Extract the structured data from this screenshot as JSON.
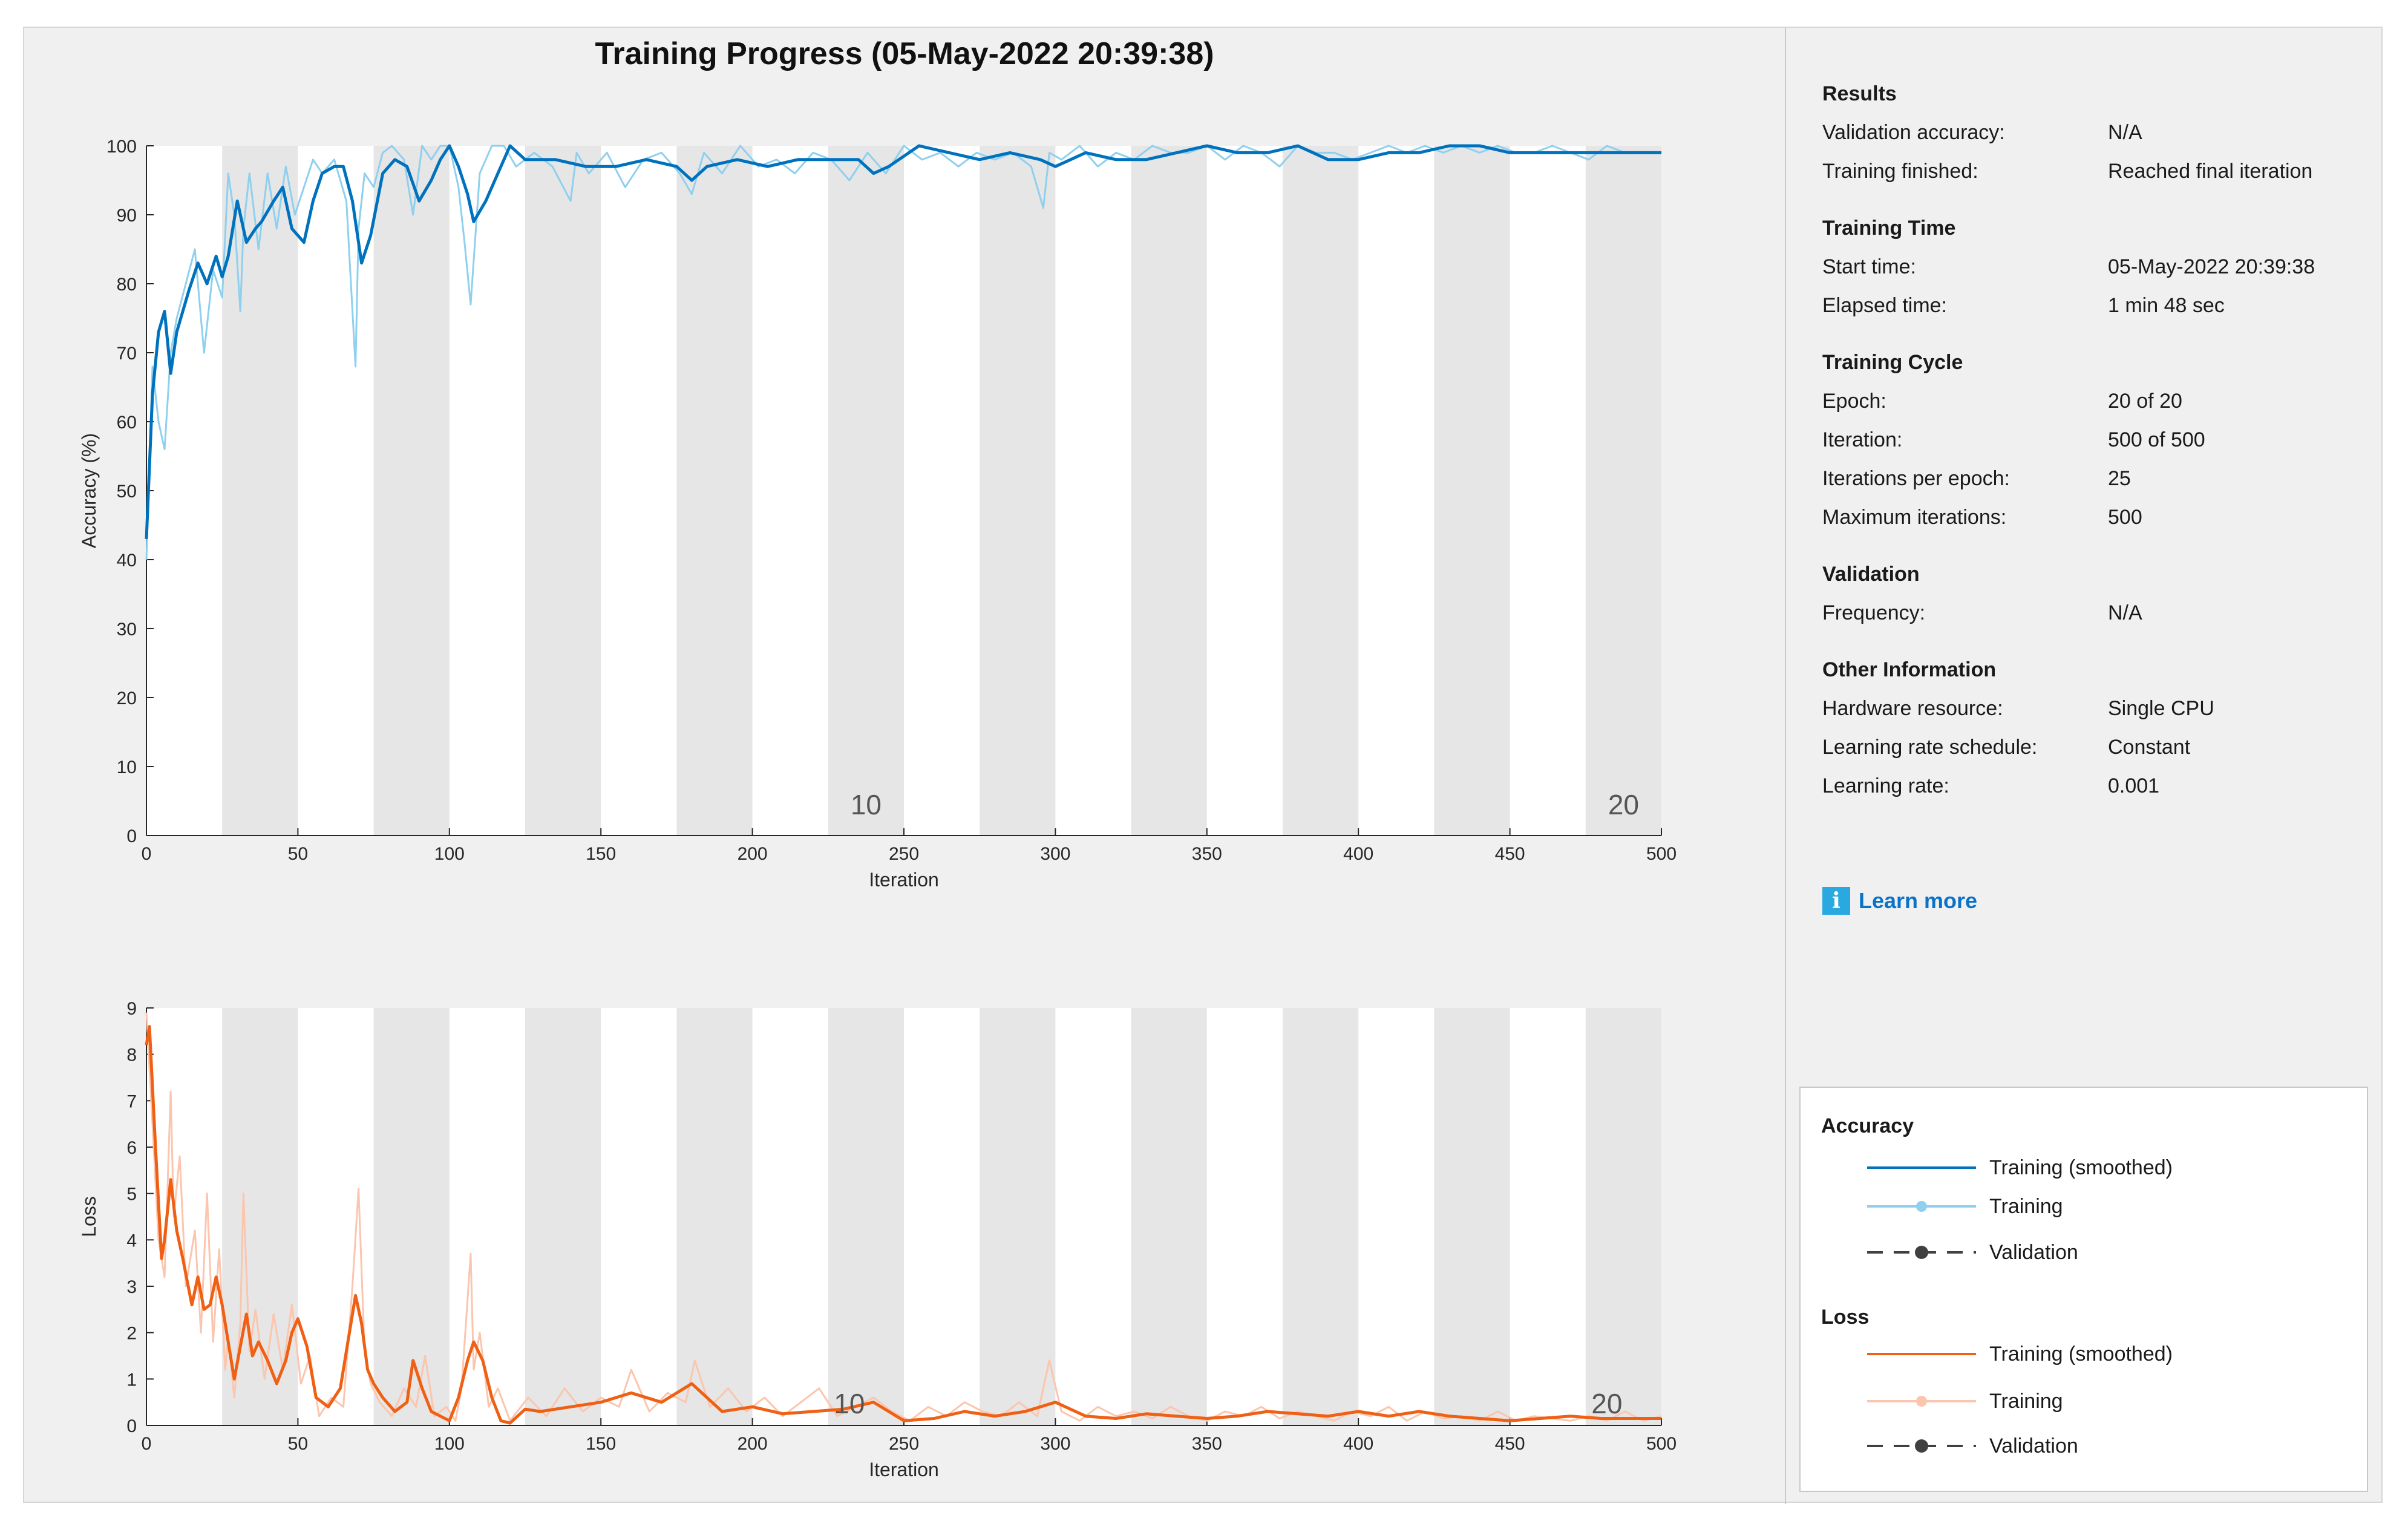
{
  "title": "Training Progress (05-May-2022 20:39:38)",
  "colors": {
    "acc_smoothed": "#0072bd",
    "acc_raw": "#8fd0ee",
    "loss_smoothed": "#f06014",
    "loss_raw": "#fbc5ae",
    "validation": "#404040",
    "band": "#e6e6e6"
  },
  "info": {
    "results": {
      "title": "Results",
      "rows": [
        {
          "label": "Validation accuracy:",
          "value": "N/A"
        },
        {
          "label": "Training finished:",
          "value": "Reached final iteration"
        }
      ]
    },
    "time": {
      "title": "Training Time",
      "rows": [
        {
          "label": "Start time:",
          "value": "05-May-2022 20:39:38"
        },
        {
          "label": "Elapsed time:",
          "value": "1 min 48 sec"
        }
      ]
    },
    "cycle": {
      "title": "Training Cycle",
      "rows": [
        {
          "label": "Epoch:",
          "value": "20 of 20"
        },
        {
          "label": "Iteration:",
          "value": "500 of 500"
        },
        {
          "label": "Iterations per epoch:",
          "value": "25"
        },
        {
          "label": "Maximum iterations:",
          "value": "500"
        }
      ]
    },
    "validation": {
      "title": "Validation",
      "rows": [
        {
          "label": "Frequency:",
          "value": "N/A"
        }
      ]
    },
    "other": {
      "title": "Other Information",
      "rows": [
        {
          "label": "Hardware resource:",
          "value": "Single CPU"
        },
        {
          "label": "Learning rate schedule:",
          "value": "Constant"
        },
        {
          "label": "Learning rate:",
          "value": "0.001"
        }
      ]
    },
    "learn_more": {
      "icon": "info-icon",
      "icon_glyph": "i",
      "label": "Learn more"
    }
  },
  "legend": {
    "accuracy": {
      "title": "Accuracy",
      "items": [
        "Training (smoothed)",
        "Training",
        "Validation"
      ]
    },
    "loss": {
      "title": "Loss",
      "items": [
        "Training (smoothed)",
        "Training",
        "Validation"
      ]
    }
  },
  "chart_data": [
    {
      "type": "line",
      "title": "Training Progress (05-May-2022 20:39:38)",
      "xlabel": "Iteration",
      "ylabel": "Accuracy (%)",
      "xlim": [
        0,
        500
      ],
      "ylim": [
        0,
        100
      ],
      "xticks": [
        0,
        50,
        100,
        150,
        200,
        250,
        300,
        350,
        400,
        450,
        500
      ],
      "yticks": [
        0,
        10,
        20,
        30,
        40,
        50,
        60,
        70,
        80,
        90,
        100
      ],
      "iterations_per_epoch": 25,
      "epoch_labels": [
        {
          "epoch": "10",
          "x": 237.5
        },
        {
          "epoch": "20",
          "x": 487.5
        }
      ],
      "series": [
        {
          "name": "Training (smoothed)",
          "x": [
            0,
            2,
            4,
            6,
            8,
            10,
            14,
            17,
            20,
            23,
            25,
            27,
            30,
            33,
            36,
            38,
            42,
            45,
            48,
            52,
            55,
            58,
            62,
            65,
            68,
            71,
            74,
            78,
            82,
            86,
            90,
            94,
            97,
            100,
            103,
            106,
            108,
            112,
            116,
            120,
            125,
            135,
            145,
            155,
            165,
            175,
            180,
            185,
            195,
            205,
            215,
            225,
            235,
            240,
            245,
            255,
            265,
            275,
            285,
            295,
            300,
            310,
            320,
            330,
            340,
            350,
            360,
            370,
            380,
            390,
            400,
            410,
            420,
            430,
            440,
            450,
            460,
            470,
            480,
            490,
            500
          ],
          "values": [
            43,
            64,
            73,
            76,
            67,
            73,
            79,
            83,
            80,
            84,
            81,
            84,
            92,
            86,
            88,
            89,
            92,
            94,
            88,
            86,
            92,
            96,
            97,
            97,
            92,
            83,
            87,
            96,
            98,
            97,
            92,
            95,
            98,
            100,
            97,
            93,
            89,
            92,
            96,
            100,
            98,
            98,
            97,
            97,
            98,
            97,
            95,
            97,
            98,
            97,
            98,
            98,
            98,
            96,
            97,
            100,
            99,
            98,
            99,
            98,
            97,
            99,
            98,
            98,
            99,
            100,
            99,
            99,
            100,
            98,
            98,
            99,
            99,
            100,
            100,
            99,
            99,
            99,
            99,
            99,
            99
          ]
        },
        {
          "name": "Training",
          "x": [
            0,
            2,
            4,
            6,
            8,
            10,
            13,
            16,
            19,
            22,
            25,
            27,
            29,
            31,
            32,
            34,
            37,
            40,
            43,
            46,
            49,
            52,
            55,
            58,
            62,
            66,
            69,
            70,
            72,
            75,
            78,
            81,
            85,
            88,
            91,
            94,
            97,
            100,
            103,
            105,
            107,
            110,
            114,
            118,
            122,
            128,
            134,
            140,
            142,
            146,
            152,
            158,
            164,
            170,
            176,
            180,
            184,
            190,
            196,
            202,
            208,
            214,
            220,
            226,
            232,
            238,
            244,
            250,
            256,
            262,
            268,
            274,
            280,
            286,
            292,
            296,
            298,
            302,
            308,
            314,
            320,
            326,
            332,
            338,
            344,
            350,
            356,
            362,
            368,
            374,
            380,
            386,
            392,
            398,
            404,
            410,
            416,
            422,
            428,
            434,
            440,
            446,
            452,
            458,
            464,
            470,
            476,
            482,
            488,
            494,
            500
          ],
          "values": [
            40,
            68,
            60,
            56,
            70,
            75,
            80,
            85,
            70,
            82,
            78,
            96,
            90,
            76,
            88,
            96,
            85,
            96,
            88,
            97,
            90,
            94,
            98,
            96,
            98,
            92,
            68,
            88,
            96,
            94,
            99,
            100,
            98,
            90,
            100,
            98,
            100,
            100,
            94,
            86,
            77,
            96,
            100,
            100,
            97,
            99,
            97,
            92,
            99,
            96,
            99,
            94,
            98,
            99,
            96,
            93,
            99,
            96,
            100,
            97,
            98,
            96,
            99,
            98,
            95,
            99,
            96,
            100,
            98,
            99,
            97,
            99,
            98,
            99,
            97,
            91,
            99,
            98,
            100,
            97,
            99,
            98,
            100,
            99,
            99,
            100,
            98,
            100,
            99,
            97,
            100,
            99,
            99,
            98,
            99,
            100,
            99,
            100,
            99,
            100,
            99,
            100,
            99,
            99,
            100,
            99,
            98,
            100,
            99,
            99,
            99
          ]
        }
      ]
    },
    {
      "type": "line",
      "xlabel": "Iteration",
      "ylabel": "Loss",
      "xlim": [
        0,
        500
      ],
      "ylim": [
        0,
        9
      ],
      "xticks": [
        0,
        50,
        100,
        150,
        200,
        250,
        300,
        350,
        400,
        450,
        500
      ],
      "yticks": [
        0,
        1,
        2,
        3,
        4,
        5,
        6,
        7,
        8,
        9
      ],
      "iterations_per_epoch": 25,
      "epoch_labels": [
        {
          "epoch": "10",
          "x": 232
        },
        {
          "epoch": "20",
          "x": 482
        }
      ],
      "series": [
        {
          "name": "Training (smoothed)",
          "x": [
            0,
            1,
            3,
            5,
            6,
            8,
            10,
            12,
            15,
            17,
            19,
            21,
            23,
            25,
            27,
            29,
            31,
            33,
            35,
            37,
            40,
            43,
            46,
            48,
            50,
            53,
            56,
            60,
            64,
            67,
            69,
            71,
            73,
            75,
            78,
            82,
            86,
            88,
            91,
            94,
            97,
            100,
            103,
            106,
            108,
            111,
            114,
            117,
            120,
            125,
            130,
            140,
            150,
            160,
            170,
            180,
            185,
            190,
            200,
            210,
            220,
            230,
            240,
            245,
            250,
            260,
            270,
            280,
            290,
            300,
            310,
            320,
            330,
            340,
            350,
            360,
            370,
            380,
            390,
            400,
            410,
            420,
            430,
            440,
            450,
            460,
            470,
            480,
            490,
            500
          ],
          "values": [
            8.2,
            8.6,
            6.0,
            3.6,
            4.0,
            5.3,
            4.2,
            3.6,
            2.6,
            3.2,
            2.5,
            2.6,
            3.2,
            2.6,
            1.8,
            1.0,
            1.7,
            2.4,
            1.5,
            1.8,
            1.4,
            0.9,
            1.4,
            2.0,
            2.3,
            1.7,
            0.6,
            0.4,
            0.8,
            2.0,
            2.8,
            2.2,
            1.2,
            0.9,
            0.6,
            0.3,
            0.5,
            1.4,
            0.8,
            0.3,
            0.2,
            0.1,
            0.6,
            1.4,
            1.8,
            1.4,
            0.6,
            0.1,
            0.05,
            0.35,
            0.3,
            0.4,
            0.5,
            0.7,
            0.5,
            0.9,
            0.6,
            0.3,
            0.4,
            0.25,
            0.3,
            0.35,
            0.5,
            0.3,
            0.1,
            0.15,
            0.3,
            0.2,
            0.3,
            0.5,
            0.2,
            0.15,
            0.25,
            0.2,
            0.15,
            0.2,
            0.3,
            0.25,
            0.2,
            0.3,
            0.2,
            0.3,
            0.2,
            0.15,
            0.1,
            0.15,
            0.2,
            0.15,
            0.15,
            0.15
          ]
        },
        {
          "name": "Training",
          "x": [
            0,
            2,
            4,
            6,
            8,
            9,
            11,
            13,
            16,
            18,
            20,
            22,
            24,
            26,
            27,
            29,
            31,
            32,
            34,
            36,
            39,
            42,
            45,
            48,
            51,
            54,
            57,
            61,
            65,
            68,
            70,
            72,
            74,
            77,
            81,
            85,
            89,
            92,
            95,
            99,
            102,
            104,
            107,
            108,
            110,
            113,
            116,
            120,
            126,
            132,
            138,
            144,
            150,
            156,
            160,
            166,
            172,
            178,
            181,
            186,
            192,
            198,
            204,
            210,
            216,
            222,
            228,
            234,
            240,
            246,
            252,
            258,
            264,
            270,
            276,
            282,
            288,
            294,
            298,
            302,
            308,
            314,
            320,
            326,
            332,
            338,
            344,
            350,
            356,
            362,
            368,
            374,
            380,
            386,
            392,
            398,
            404,
            410,
            416,
            422,
            428,
            434,
            440,
            446,
            452,
            458,
            464,
            470,
            476,
            482,
            488,
            494,
            500
          ],
          "values": [
            8.9,
            6.5,
            4.0,
            3.2,
            7.2,
            4.5,
            5.8,
            3.0,
            4.2,
            2.0,
            5.0,
            1.8,
            3.8,
            1.2,
            1.9,
            0.6,
            2.2,
            5.0,
            1.6,
            2.5,
            1.0,
            2.4,
            1.2,
            2.6,
            0.9,
            1.5,
            0.2,
            0.6,
            0.4,
            3.0,
            5.1,
            1.6,
            0.9,
            0.5,
            0.2,
            0.8,
            0.4,
            1.5,
            0.2,
            0.4,
            0.1,
            0.8,
            3.7,
            1.2,
            2.0,
            0.4,
            0.8,
            0.1,
            0.6,
            0.2,
            0.8,
            0.3,
            0.6,
            0.4,
            1.2,
            0.3,
            0.7,
            0.5,
            1.4,
            0.4,
            0.8,
            0.3,
            0.6,
            0.2,
            0.5,
            0.8,
            0.2,
            0.4,
            0.6,
            0.3,
            0.1,
            0.4,
            0.2,
            0.5,
            0.3,
            0.2,
            0.5,
            0.2,
            1.4,
            0.3,
            0.1,
            0.4,
            0.2,
            0.3,
            0.15,
            0.4,
            0.2,
            0.1,
            0.3,
            0.2,
            0.4,
            0.15,
            0.3,
            0.2,
            0.1,
            0.3,
            0.2,
            0.4,
            0.1,
            0.3,
            0.15,
            0.2,
            0.1,
            0.3,
            0.1,
            0.2,
            0.15,
            0.1,
            0.2,
            0.1,
            0.3,
            0.1,
            0.2
          ]
        }
      ]
    }
  ]
}
